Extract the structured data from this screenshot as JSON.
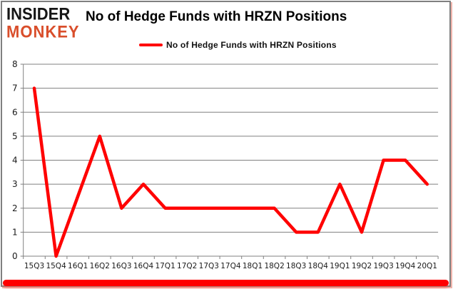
{
  "logo": {
    "line1": "INSIDER",
    "line2": "MONKEY"
  },
  "header": {
    "title": "No of Hedge Funds with HRZN Positions"
  },
  "legend": {
    "label": "No of Hedge Funds with HRZN Positions"
  },
  "colors": {
    "line": "#ff0000",
    "logo_black": "#161616",
    "logo_orange": "#d94e2b",
    "gridline": "#808080",
    "axis": "#808080",
    "tick_label": "#1a1a1a",
    "accent_bar": "#ff0000",
    "frame_border": "#7f7f7f"
  },
  "chart_data": {
    "type": "line",
    "title": "No of Hedge Funds with HRZN Positions",
    "categories": [
      "15Q3",
      "15Q4",
      "16Q1",
      "16Q2",
      "16Q3",
      "16Q4",
      "17Q1",
      "17Q2",
      "17Q3",
      "17Q4",
      "18Q1",
      "18Q2",
      "18Q3",
      "18Q4",
      "19Q1",
      "19Q2",
      "19Q3",
      "19Q4",
      "20Q1"
    ],
    "series": [
      {
        "name": "No of Hedge Funds with HRZN Positions",
        "values": [
          7,
          0,
          2.5,
          5,
          2,
          3,
          2,
          2,
          2,
          2,
          2,
          2,
          1,
          1,
          3,
          1,
          4,
          4,
          3
        ]
      }
    ],
    "xlabel": "",
    "ylabel": "",
    "ylim": [
      0,
      8
    ],
    "y_ticks": [
      0,
      1,
      2,
      3,
      4,
      5,
      6,
      7,
      8
    ],
    "grid": true,
    "legend_position": "top-center"
  }
}
